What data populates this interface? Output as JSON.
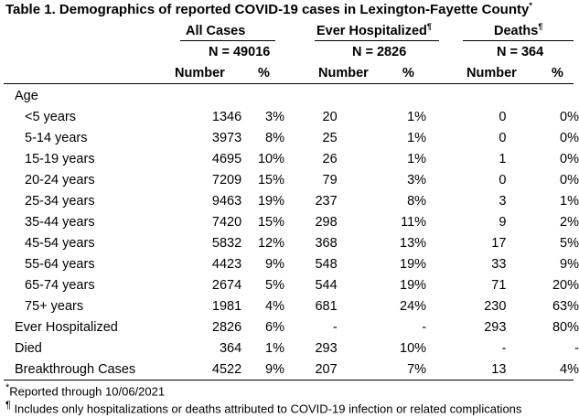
{
  "title": "Table 1. Demographics of reported COVID-19 cases in Lexington-Fayette County",
  "title_mark": "*",
  "groups": [
    {
      "label": "All Cases",
      "mark": "",
      "n": "N = 49016"
    },
    {
      "label": "Ever Hospitalized",
      "mark": "¶",
      "n": "N = 2826"
    },
    {
      "label": "Deaths",
      "mark": "¶",
      "n": "N = 364"
    }
  ],
  "col_headers": {
    "number": "Number",
    "pct": "%"
  },
  "section_age": "Age",
  "rows": [
    {
      "label": "<5 years",
      "v": [
        "1346",
        "3%",
        "20",
        "1%",
        "0",
        "0%"
      ],
      "indent": true
    },
    {
      "label": "5-14 years",
      "v": [
        "3973",
        "8%",
        "25",
        "1%",
        "0",
        "0%"
      ],
      "indent": true
    },
    {
      "label": "15-19 years",
      "v": [
        "4695",
        "10%",
        "26",
        "1%",
        "1",
        "0%"
      ],
      "indent": true
    },
    {
      "label": "20-24 years",
      "v": [
        "7209",
        "15%",
        "79",
        "3%",
        "0",
        "0%"
      ],
      "indent": true
    },
    {
      "label": "25-34 years",
      "v": [
        "9463",
        "19%",
        "237",
        "8%",
        "3",
        "1%"
      ],
      "indent": true
    },
    {
      "label": "35-44 years",
      "v": [
        "7420",
        "15%",
        "298",
        "11%",
        "9",
        "2%"
      ],
      "indent": true
    },
    {
      "label": "45-54 years",
      "v": [
        "5832",
        "12%",
        "368",
        "13%",
        "17",
        "5%"
      ],
      "indent": true
    },
    {
      "label": "55-64 years",
      "v": [
        "4423",
        "9%",
        "548",
        "19%",
        "33",
        "9%"
      ],
      "indent": true
    },
    {
      "label": "65-74 years",
      "v": [
        "2674",
        "5%",
        "544",
        "19%",
        "71",
        "20%"
      ],
      "indent": true
    },
    {
      "label": "75+ years",
      "v": [
        "1981",
        "4%",
        "681",
        "24%",
        "230",
        "63%"
      ],
      "indent": true
    },
    {
      "label": "Ever Hospitalized",
      "v": [
        "2826",
        "6%",
        "-",
        "-",
        "293",
        "80%"
      ],
      "indent": false
    },
    {
      "label": "Died",
      "v": [
        "364",
        "1%",
        "293",
        "10%",
        "-",
        "-"
      ],
      "indent": false
    },
    {
      "label": "Breakthrough Cases",
      "v": [
        "4522",
        "9%",
        "207",
        "7%",
        "13",
        "4%"
      ],
      "indent": false
    }
  ],
  "footnotes": [
    {
      "mark": "*",
      "text": "Reported through 10/06/2021"
    },
    {
      "mark": "¶",
      "text": " Includes only hospitalizations or deaths attributed to COVID-19 infection or related complications"
    }
  ]
}
